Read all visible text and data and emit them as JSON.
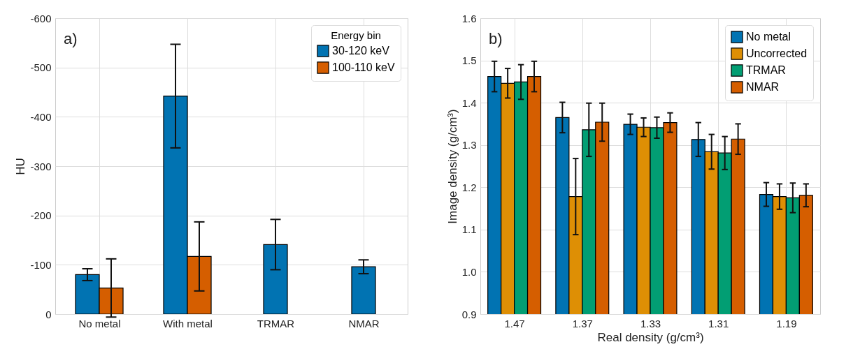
{
  "chart_data": [
    {
      "type": "bar",
      "categories": [
        "No metal",
        "With metal",
        "TRMAR",
        "NMAR"
      ],
      "ylabel": "HU",
      "ylim": [
        0,
        -600
      ],
      "yticks": [
        0,
        -100,
        -200,
        -300,
        -400,
        -500,
        -600
      ],
      "legend_title": "Energy bin",
      "legend": "top right",
      "grid": true,
      "annotations": [
        "a)"
      ],
      "series": [
        {
          "name": "30-120 keV",
          "color": "#0173b2",
          "values": [
            -80,
            -442,
            -141,
            -96
          ],
          "errors": [
            12,
            105,
            51,
            14
          ]
        },
        {
          "name": "100-110 keV",
          "color": "#d55e00",
          "values": [
            -53,
            -117,
            null,
            null
          ],
          "errors": [
            59,
            70,
            null,
            null
          ]
        }
      ]
    },
    {
      "type": "bar",
      "categories": [
        "1.47",
        "1.37",
        "1.33",
        "1.31",
        "1.19"
      ],
      "xlabel": "Real density (g/cm³)",
      "ylabel": "Image density (g/cm³)",
      "ylim": [
        0.9,
        1.6
      ],
      "yticks": [
        0.9,
        {
          "value": 1,
          "label": "1.0"
        },
        1.1,
        1.2,
        1.3,
        1.4,
        1.5,
        1.6
      ],
      "legend": "top right",
      "grid": true,
      "annotations": [
        "b)"
      ],
      "series": [
        {
          "name": "No metal",
          "color": "#0173b2",
          "values": [
            1.462,
            1.365,
            1.349,
            1.313,
            1.183
          ],
          "errors": [
            0.036,
            0.036,
            0.024,
            0.04,
            0.028
          ]
        },
        {
          "name": "Uncorrected",
          "color": "#de8f05",
          "values": [
            1.446,
            1.178,
            1.342,
            1.284,
            1.178
          ],
          "errors": [
            0.035,
            0.09,
            0.022,
            0.041,
            0.03
          ]
        },
        {
          "name": "TRMAR",
          "color": "#029e73",
          "values": [
            1.449,
            1.336,
            1.341,
            1.281,
            1.175
          ],
          "errors": [
            0.041,
            0.063,
            0.025,
            0.039,
            0.035
          ]
        },
        {
          "name": "NMAR",
          "color": "#d55e00",
          "values": [
            1.462,
            1.354,
            1.353,
            1.314,
            1.181
          ],
          "errors": [
            0.036,
            0.045,
            0.023,
            0.036,
            0.027
          ]
        }
      ]
    }
  ]
}
